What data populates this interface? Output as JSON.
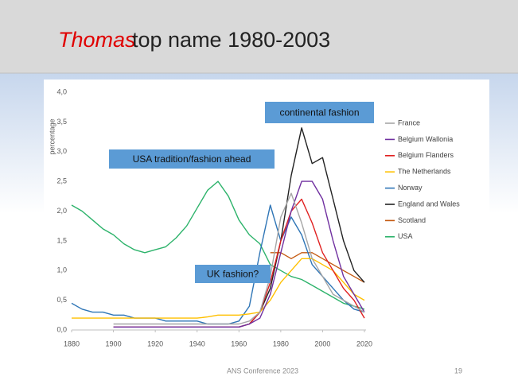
{
  "slide": {
    "title_name": "Thomas",
    "title_rest": "top name 1980-2003",
    "footer": "ANS Conference 2023",
    "page": 19
  },
  "chart_data": {
    "type": "line",
    "y_label": "percentage",
    "x": [
      1880,
      1885,
      1890,
      1895,
      1900,
      1905,
      1910,
      1915,
      1920,
      1925,
      1930,
      1935,
      1940,
      1945,
      1950,
      1955,
      1960,
      1965,
      1970,
      1975,
      1980,
      1985,
      1990,
      1995,
      2000,
      2005,
      2010,
      2015,
      2020
    ],
    "xlim": [
      1880,
      2020
    ],
    "xticks": [
      1880,
      1900,
      1920,
      1940,
      1960,
      1980,
      2000,
      2020
    ],
    "ylim": [
      0,
      4
    ],
    "yticks": [
      {
        "value": 0,
        "label": "0,0"
      },
      {
        "value": 0.5,
        "label": "0,5"
      },
      {
        "value": 1,
        "label": "1,0"
      },
      {
        "value": 1.5,
        "label": "1,5"
      },
      {
        "value": 2,
        "label": "2,0"
      },
      {
        "value": 2.5,
        "label": "2,5"
      },
      {
        "value": 3,
        "label": "3,0"
      },
      {
        "value": 3.5,
        "label": "3,5"
      },
      {
        "value": 4,
        "label": "4,0"
      }
    ],
    "grid": false,
    "legend": "right",
    "annotations": [
      "continental fashion",
      "USA tradition/fashion ahead",
      "UK fashion?"
    ],
    "series": [
      {
        "name": "France",
        "color": "#a6a6a6",
        "values": [
          null,
          null,
          null,
          null,
          0.1,
          0.1,
          0.1,
          0.1,
          0.1,
          0.1,
          0.1,
          0.1,
          0.1,
          0.1,
          0.1,
          0.1,
          0.1,
          0.15,
          0.3,
          0.9,
          1.9,
          2.3,
          1.8,
          1.2,
          0.9,
          0.6,
          0.5,
          0.4,
          0.3
        ]
      },
      {
        "name": "Belgium Wallonia",
        "color": "#7030a0",
        "values": [
          null,
          null,
          null,
          null,
          0.05,
          0.05,
          0.05,
          0.05,
          0.05,
          0.05,
          0.05,
          0.05,
          0.05,
          0.05,
          0.05,
          0.05,
          0.05,
          0.1,
          0.2,
          0.6,
          1.3,
          2.0,
          2.5,
          2.5,
          2.2,
          1.5,
          0.9,
          0.6,
          0.3
        ]
      },
      {
        "name": "Belgium Flanders",
        "color": "#e02020",
        "values": [
          null,
          null,
          null,
          null,
          0.05,
          0.05,
          0.05,
          0.05,
          0.05,
          0.05,
          0.05,
          0.05,
          0.05,
          0.05,
          0.05,
          0.05,
          0.05,
          0.1,
          0.3,
          0.8,
          1.5,
          2.0,
          2.2,
          1.8,
          1.3,
          1.0,
          0.7,
          0.5,
          0.2
        ]
      },
      {
        "name": "The Netherlands",
        "color": "#ffc000",
        "values": [
          0.2,
          0.2,
          0.2,
          0.2,
          0.2,
          0.2,
          0.2,
          0.2,
          0.2,
          0.2,
          0.2,
          0.2,
          0.2,
          0.22,
          0.25,
          0.25,
          0.25,
          0.27,
          0.3,
          0.5,
          0.8,
          1.0,
          1.2,
          1.2,
          1.1,
          1.0,
          0.8,
          0.6,
          0.5
        ]
      },
      {
        "name": "Norway",
        "color": "#2e75b6",
        "values": [
          0.45,
          0.35,
          0.3,
          0.3,
          0.25,
          0.25,
          0.2,
          0.2,
          0.2,
          0.15,
          0.15,
          0.15,
          0.15,
          0.1,
          0.1,
          0.1,
          0.15,
          0.4,
          1.3,
          2.1,
          1.5,
          1.9,
          1.6,
          1.1,
          0.9,
          0.7,
          0.5,
          0.35,
          0.3
        ]
      },
      {
        "name": "England and Wales",
        "color": "#222222",
        "values": [
          null,
          null,
          null,
          null,
          0.05,
          0.05,
          0.05,
          0.05,
          0.05,
          0.05,
          0.05,
          0.05,
          0.05,
          0.05,
          0.05,
          0.05,
          0.05,
          0.1,
          0.3,
          0.7,
          1.5,
          2.6,
          3.4,
          2.8,
          2.9,
          2.2,
          1.5,
          1.0,
          0.8
        ]
      },
      {
        "name": "Scotland",
        "color": "#c55a11",
        "values": [
          null,
          null,
          null,
          null,
          null,
          null,
          null,
          null,
          null,
          null,
          null,
          null,
          null,
          null,
          null,
          null,
          null,
          null,
          null,
          1.3,
          1.3,
          1.2,
          1.3,
          1.3,
          1.2,
          1.1,
          1.0,
          0.9,
          0.8
        ]
      },
      {
        "name": "USA",
        "color": "#2db36b",
        "values": [
          2.1,
          2.0,
          1.85,
          1.7,
          1.6,
          1.45,
          1.35,
          1.3,
          1.35,
          1.4,
          1.55,
          1.75,
          2.05,
          2.35,
          2.5,
          2.25,
          1.85,
          1.6,
          1.45,
          1.1,
          1.0,
          0.9,
          0.85,
          0.75,
          0.65,
          0.55,
          0.45,
          0.4,
          0.35
        ]
      }
    ]
  }
}
